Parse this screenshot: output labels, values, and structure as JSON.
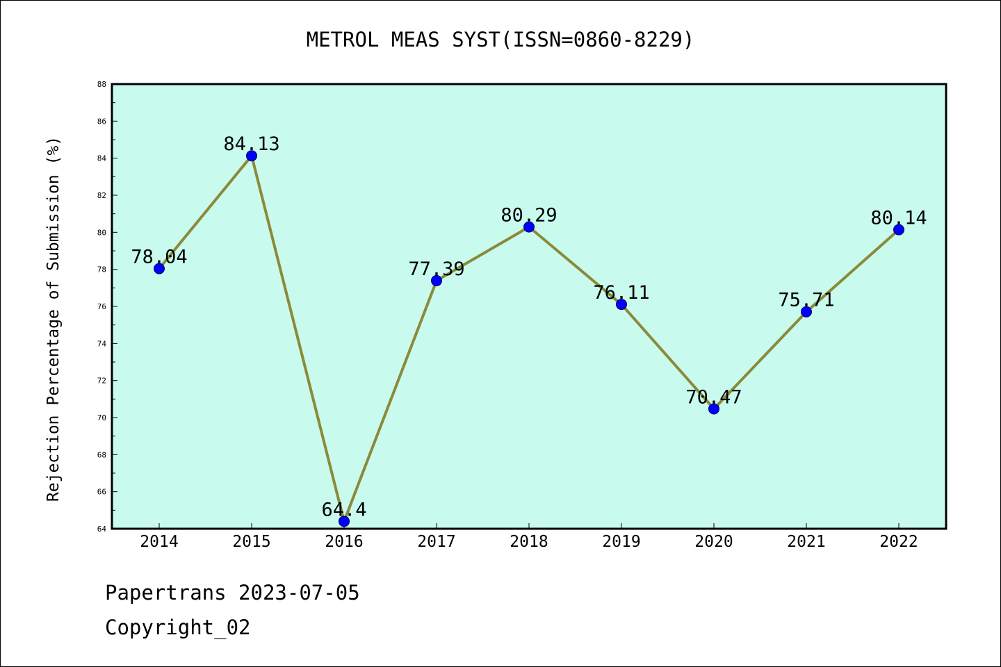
{
  "chart_data": {
    "type": "line",
    "title": "METROL MEAS SYST(ISSN=0860-8229)",
    "xlabel": "",
    "ylabel": "Rejection Percentage of Submission (%)",
    "categories": [
      "2014",
      "2015",
      "2016",
      "2017",
      "2018",
      "2019",
      "2020",
      "2021",
      "2022"
    ],
    "series": [
      {
        "values": [
          78.04,
          84.13,
          64.4,
          77.39,
          80.29,
          76.11,
          70.47,
          75.71,
          80.14
        ],
        "labels": [
          "78.04",
          "84.13",
          "64.4",
          "77.39",
          "80.29",
          "76.11",
          "70.47",
          "75.71",
          "80.14"
        ]
      }
    ],
    "ylim": [
      64,
      88
    ],
    "yticks": [
      "64",
      "66",
      "68",
      "70",
      "72",
      "74",
      "76",
      "78",
      "80",
      "82",
      "84",
      "86",
      "88"
    ],
    "grid": false,
    "colors": {
      "plot_background": "#c8fbee",
      "line": "#8b8a3a",
      "marker": "#0000ff"
    }
  },
  "footer": {
    "line1": "Papertrans 2023-07-05",
    "line2": "Copyright_02"
  }
}
